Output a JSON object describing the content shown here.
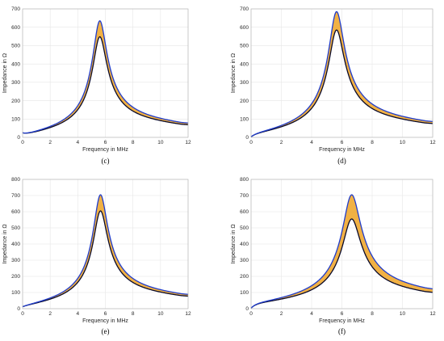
{
  "chart_data": [
    {
      "type": "area",
      "caption": "(c)",
      "xlabel": "Frequency in MHz",
      "ylabel": "Impedance in Ω",
      "xlim": [
        0,
        12
      ],
      "ylim": [
        0,
        700
      ],
      "xticks": [
        0,
        2,
        4,
        6,
        8,
        10,
        12
      ],
      "yticks": [
        0,
        100,
        200,
        300,
        400,
        500,
        600,
        700
      ],
      "grid": true,
      "fill_color": "#f0a830",
      "upper_color": "#1f3ccc",
      "lower_color": "#0a0a2a",
      "resonance_mhz": 5.6,
      "peak_upper": 635,
      "peak_lower": 548,
      "baseline": 14,
      "low_end": 25
    },
    {
      "type": "area",
      "caption": "(d)",
      "xlabel": "Frequency in MHz",
      "ylabel": "Impedance in Ω",
      "xlim": [
        0,
        12
      ],
      "ylim": [
        0,
        700
      ],
      "xticks": [
        0,
        2,
        4,
        6,
        8,
        10,
        12
      ],
      "yticks": [
        0,
        100,
        200,
        300,
        400,
        500,
        600,
        700
      ],
      "grid": true,
      "fill_color": "#f0a830",
      "upper_color": "#1f3ccc",
      "lower_color": "#0a0a2a",
      "resonance_mhz": 5.65,
      "peak_upper": 685,
      "peak_lower": 585,
      "baseline": 16,
      "low_end": 3
    },
    {
      "type": "area",
      "caption": "(e)",
      "xlabel": "Frequency in MHz",
      "ylabel": "Impedance in Ω",
      "xlim": [
        0,
        12
      ],
      "ylim": [
        0,
        800
      ],
      "xticks": [
        0,
        2,
        4,
        6,
        8,
        10,
        12
      ],
      "yticks": [
        0,
        100,
        200,
        300,
        400,
        500,
        600,
        700,
        800
      ],
      "grid": true,
      "fill_color": "#f0a830",
      "upper_color": "#1f3ccc",
      "lower_color": "#0a0a2a",
      "resonance_mhz": 5.65,
      "peak_upper": 705,
      "peak_lower": 605,
      "baseline": 16,
      "low_end": 12
    },
    {
      "type": "area",
      "caption": "(f)",
      "xlabel": "Frequency in MHz",
      "ylabel": "Impedance in Ω",
      "xlim": [
        0,
        12
      ],
      "ylim": [
        0,
        800
      ],
      "xticks": [
        0,
        2,
        4,
        6,
        8,
        10,
        12
      ],
      "yticks": [
        0,
        100,
        200,
        300,
        400,
        500,
        600,
        700,
        800
      ],
      "grid": true,
      "fill_color": "#f0a830",
      "upper_color": "#1f3ccc",
      "lower_color": "#0a0a2a",
      "resonance_mhz": 6.65,
      "peak_upper": 705,
      "peak_lower": 555,
      "baseline": 28,
      "low_end": 3
    }
  ]
}
